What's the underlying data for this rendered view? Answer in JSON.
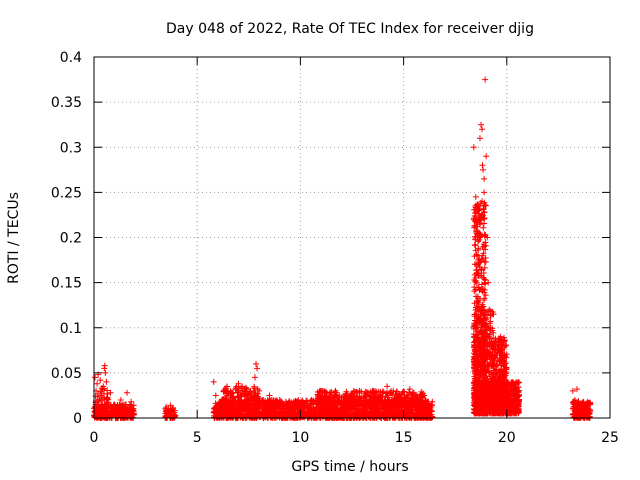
{
  "chart_data": {
    "type": "scatter",
    "title": "Day 048 of 2022, Rate Of TEC Index for receiver djig",
    "xlabel": "GPS time / hours",
    "ylabel": "ROTI / TECUs",
    "xlim": [
      0,
      25
    ],
    "ylim": [
      0,
      0.4
    ],
    "x_ticks": [
      0,
      5,
      10,
      15,
      20,
      25
    ],
    "y_ticks": [
      0,
      0.05,
      0.1,
      0.15,
      0.2,
      0.25,
      0.3,
      0.35,
      0.4
    ],
    "x_tick_labels": [
      "0",
      "5",
      "10",
      "15",
      "20",
      "25"
    ],
    "y_tick_labels": [
      "0",
      "0.05",
      "0.1",
      "0.15",
      "0.2",
      "0.25",
      "0.3",
      "0.35",
      "0.4"
    ],
    "grid": true,
    "marker": "+",
    "color": "#ff0000",
    "series": [
      {
        "points": [
          [
            0.05,
            0.045
          ],
          [
            0.1,
            0.03
          ],
          [
            0.15,
            0.038
          ],
          [
            0.2,
            0.048
          ],
          [
            0.25,
            0.02
          ],
          [
            0.3,
            0.042
          ],
          [
            0.35,
            0.025
          ],
          [
            0.4,
            0.015
          ],
          [
            0.45,
            0.035
          ],
          [
            0.5,
            0.055
          ],
          [
            0.52,
            0.058
          ],
          [
            0.55,
            0.05
          ],
          [
            0.6,
            0.04
          ],
          [
            0.65,
            0.02
          ],
          [
            0.7,
            0.012
          ],
          [
            0.8,
            0.028
          ],
          [
            0.9,
            0.01
          ],
          [
            1.0,
            0.015
          ],
          [
            1.1,
            0.008
          ],
          [
            1.2,
            0.012
          ],
          [
            1.3,
            0.02
          ],
          [
            1.4,
            0.01
          ],
          [
            1.5,
            0.015
          ],
          [
            1.6,
            0.028
          ],
          [
            1.7,
            0.012
          ],
          [
            1.8,
            0.018
          ],
          [
            1.9,
            0.01
          ],
          [
            3.5,
            0.012
          ],
          [
            3.6,
            0.008
          ],
          [
            3.7,
            0.014
          ],
          [
            3.8,
            0.01
          ],
          [
            3.9,
            0.006
          ],
          [
            5.8,
            0.04
          ],
          [
            5.9,
            0.025
          ],
          [
            6.0,
            0.015
          ],
          [
            6.2,
            0.02
          ],
          [
            6.5,
            0.03
          ],
          [
            6.7,
            0.022
          ],
          [
            6.9,
            0.035
          ],
          [
            7.0,
            0.038
          ],
          [
            7.2,
            0.03
          ],
          [
            7.4,
            0.025
          ],
          [
            7.6,
            0.028
          ],
          [
            7.8,
            0.045
          ],
          [
            7.85,
            0.06
          ],
          [
            7.9,
            0.055
          ],
          [
            8.0,
            0.03
          ],
          [
            8.2,
            0.02
          ],
          [
            8.5,
            0.025
          ],
          [
            8.8,
            0.015
          ],
          [
            9.0,
            0.02
          ],
          [
            9.3,
            0.018
          ],
          [
            9.6,
            0.012
          ],
          [
            9.9,
            0.02
          ],
          [
            10.2,
            0.016
          ],
          [
            10.5,
            0.012
          ],
          [
            10.8,
            0.02
          ],
          [
            11.0,
            0.018
          ],
          [
            11.2,
            0.022
          ],
          [
            11.5,
            0.028
          ],
          [
            11.7,
            0.03
          ],
          [
            12.0,
            0.02
          ],
          [
            12.3,
            0.025
          ],
          [
            12.6,
            0.02
          ],
          [
            12.9,
            0.022
          ],
          [
            13.2,
            0.025
          ],
          [
            13.5,
            0.03
          ],
          [
            13.8,
            0.022
          ],
          [
            14.0,
            0.028
          ],
          [
            14.2,
            0.035
          ],
          [
            14.5,
            0.03
          ],
          [
            14.8,
            0.025
          ],
          [
            15.0,
            0.02
          ],
          [
            15.3,
            0.032
          ],
          [
            15.5,
            0.028
          ],
          [
            15.8,
            0.02
          ],
          [
            16.0,
            0.025
          ],
          [
            16.2,
            0.018
          ],
          [
            16.3,
            0.01
          ],
          [
            18.4,
            0.3
          ],
          [
            18.5,
            0.245
          ],
          [
            18.6,
            0.18
          ],
          [
            18.65,
            0.22
          ],
          [
            18.7,
            0.31
          ],
          [
            18.75,
            0.325
          ],
          [
            18.8,
            0.32
          ],
          [
            18.82,
            0.28
          ],
          [
            18.85,
            0.275
          ],
          [
            18.9,
            0.265
          ],
          [
            18.95,
            0.375
          ],
          [
            19.0,
            0.29
          ],
          [
            18.9,
            0.25
          ],
          [
            18.8,
            0.24
          ],
          [
            18.7,
            0.2
          ],
          [
            18.6,
            0.16
          ],
          [
            18.5,
            0.12
          ],
          [
            18.45,
            0.08
          ],
          [
            18.55,
            0.1
          ],
          [
            18.9,
            0.19
          ],
          [
            19.05,
            0.2
          ],
          [
            19.1,
            0.15
          ],
          [
            19.15,
            0.12
          ],
          [
            19.2,
            0.1
          ],
          [
            19.3,
            0.08
          ],
          [
            19.4,
            0.06
          ],
          [
            19.5,
            0.05
          ],
          [
            19.6,
            0.08
          ],
          [
            19.7,
            0.09
          ],
          [
            19.8,
            0.07
          ],
          [
            19.9,
            0.05
          ],
          [
            20.0,
            0.04
          ],
          [
            20.1,
            0.03
          ],
          [
            20.2,
            0.035
          ],
          [
            20.3,
            0.025
          ],
          [
            20.4,
            0.02
          ],
          [
            20.5,
            0.015
          ],
          [
            23.2,
            0.03
          ],
          [
            23.3,
            0.02
          ],
          [
            23.4,
            0.032
          ],
          [
            23.5,
            0.015
          ],
          [
            23.6,
            0.008
          ],
          [
            23.7,
            0.012
          ],
          [
            23.8,
            0.015
          ],
          [
            23.9,
            0.01
          ],
          [
            24.0,
            0.008
          ]
        ]
      }
    ],
    "dense_clusters": [
      {
        "x_range": [
          0.0,
          1.95
        ],
        "y_range": [
          0.0,
          0.015
        ],
        "count": 300
      },
      {
        "x_range": [
          0.0,
          0.7
        ],
        "y_range": [
          0.0,
          0.035
        ],
        "count": 70
      },
      {
        "x_range": [
          3.45,
          3.95
        ],
        "y_range": [
          0.0,
          0.012
        ],
        "count": 60
      },
      {
        "x_range": [
          5.8,
          16.4
        ],
        "y_range": [
          0.0,
          0.02
        ],
        "count": 1800
      },
      {
        "x_range": [
          6.2,
          8.0
        ],
        "y_range": [
          0.015,
          0.035
        ],
        "count": 150
      },
      {
        "x_range": [
          10.8,
          16.0
        ],
        "y_range": [
          0.015,
          0.03
        ],
        "count": 400
      },
      {
        "x_range": [
          18.4,
          19.0
        ],
        "y_range": [
          0.05,
          0.24
        ],
        "count": 350
      },
      {
        "x_range": [
          18.4,
          19.4
        ],
        "y_range": [
          0.02,
          0.12
        ],
        "count": 400
      },
      {
        "x_range": [
          18.4,
          20.6
        ],
        "y_range": [
          0.005,
          0.04
        ],
        "count": 900
      },
      {
        "x_range": [
          19.3,
          20.0
        ],
        "y_range": [
          0.02,
          0.09
        ],
        "count": 250
      },
      {
        "x_range": [
          23.2,
          24.05
        ],
        "y_range": [
          0.0,
          0.02
        ],
        "count": 180
      }
    ]
  }
}
